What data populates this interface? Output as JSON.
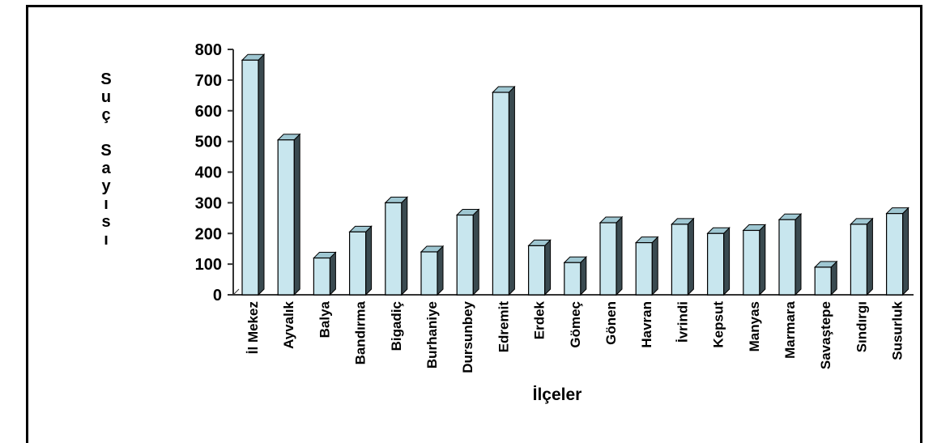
{
  "chart_data": {
    "type": "bar",
    "title": "",
    "xlabel": "İlçeler",
    "ylabel": "Suç Sayısı",
    "ylim": [
      0,
      800
    ],
    "yticks": [
      0,
      100,
      200,
      300,
      400,
      500,
      600,
      700,
      800
    ],
    "grid": false,
    "legend": "none",
    "bar_color": "#c8e6ee",
    "categories": [
      "İl Mekez",
      "Ayvalık",
      "Balya",
      "Bandırma",
      "Bigadiç",
      "Burhaniye",
      "Dursunbey",
      "Edremit",
      "Erdek",
      "Gömeç",
      "Gönen",
      "Havran",
      "İvrindi",
      "Kepsut",
      "Manyas",
      "Marmara",
      "Savaştepe",
      "Sındırgı",
      "Susurluk"
    ],
    "values": [
      765,
      505,
      120,
      205,
      300,
      140,
      260,
      660,
      160,
      105,
      235,
      170,
      230,
      200,
      210,
      245,
      90,
      230,
      265
    ]
  }
}
